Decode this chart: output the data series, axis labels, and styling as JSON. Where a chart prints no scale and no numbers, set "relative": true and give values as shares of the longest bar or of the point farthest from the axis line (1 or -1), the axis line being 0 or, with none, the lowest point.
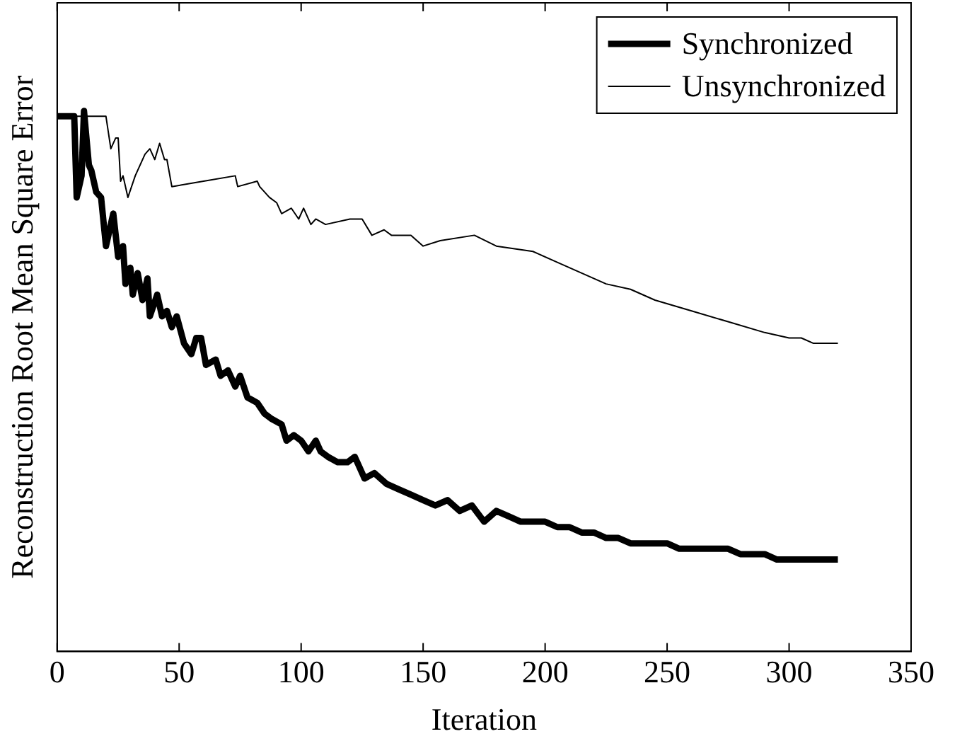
{
  "chart_data": {
    "type": "line",
    "xlabel": "Iteration",
    "ylabel": "Reconstruction Root Mean Square Error",
    "relative": true,
    "xlim": [
      0,
      350
    ],
    "xticks": [
      0,
      50,
      100,
      150,
      200,
      250,
      300,
      350
    ],
    "legend": "top right",
    "marker": "none",
    "series": [
      {
        "name": "Synchronized",
        "color": "#000000",
        "x": [
          0,
          5,
          7,
          8,
          10,
          11,
          13,
          14,
          16,
          18,
          20,
          22,
          23,
          25,
          27,
          28,
          30,
          31,
          33,
          35,
          37,
          38,
          41,
          43,
          45,
          47,
          49,
          52,
          55,
          57,
          59,
          61,
          65,
          67,
          70,
          73,
          75,
          78,
          82,
          85,
          88,
          92,
          94,
          97,
          100,
          103,
          106,
          108,
          111,
          115,
          119,
          122,
          126,
          130,
          135,
          140,
          145,
          150,
          155,
          160,
          165,
          170,
          175,
          180,
          185,
          190,
          195,
          200,
          205,
          210,
          215,
          220,
          225,
          230,
          235,
          240,
          245,
          250,
          255,
          260,
          265,
          270,
          275,
          280,
          285,
          290,
          295,
          300,
          305,
          310,
          315,
          320
        ],
        "values": [
          0.99,
          0.99,
          0.99,
          0.84,
          0.88,
          1.0,
          0.9,
          0.89,
          0.85,
          0.84,
          0.75,
          0.79,
          0.81,
          0.73,
          0.75,
          0.68,
          0.71,
          0.66,
          0.7,
          0.65,
          0.69,
          0.62,
          0.66,
          0.62,
          0.63,
          0.6,
          0.62,
          0.57,
          0.55,
          0.58,
          0.58,
          0.53,
          0.54,
          0.51,
          0.52,
          0.49,
          0.51,
          0.47,
          0.46,
          0.44,
          0.43,
          0.42,
          0.39,
          0.4,
          0.39,
          0.37,
          0.39,
          0.37,
          0.36,
          0.35,
          0.35,
          0.36,
          0.32,
          0.33,
          0.31,
          0.3,
          0.29,
          0.28,
          0.27,
          0.28,
          0.26,
          0.27,
          0.24,
          0.26,
          0.25,
          0.24,
          0.24,
          0.24,
          0.23,
          0.23,
          0.22,
          0.22,
          0.21,
          0.21,
          0.2,
          0.2,
          0.2,
          0.2,
          0.19,
          0.19,
          0.19,
          0.19,
          0.19,
          0.18,
          0.18,
          0.18,
          0.17,
          0.17,
          0.17,
          0.17,
          0.17,
          0.17
        ]
      },
      {
        "name": "Unsynchronized",
        "color": "#000000",
        "x": [
          0,
          20,
          22,
          24,
          25,
          26,
          27,
          29,
          32,
          36,
          38,
          40,
          42,
          44,
          45,
          47,
          60,
          73,
          74,
          82,
          83,
          87,
          90,
          92,
          96,
          99,
          101,
          104,
          106,
          110,
          120,
          125,
          129,
          134,
          137,
          145,
          150,
          157,
          171,
          180,
          195,
          205,
          215,
          225,
          235,
          245,
          260,
          275,
          290,
          300,
          305,
          310,
          320
        ],
        "values": [
          0.99,
          0.99,
          0.93,
          0.95,
          0.95,
          0.87,
          0.88,
          0.84,
          0.88,
          0.92,
          0.93,
          0.91,
          0.94,
          0.91,
          0.91,
          0.86,
          0.87,
          0.88,
          0.86,
          0.87,
          0.86,
          0.84,
          0.83,
          0.81,
          0.82,
          0.8,
          0.82,
          0.79,
          0.8,
          0.79,
          0.8,
          0.8,
          0.77,
          0.78,
          0.77,
          0.77,
          0.75,
          0.76,
          0.77,
          0.75,
          0.74,
          0.72,
          0.7,
          0.68,
          0.67,
          0.65,
          0.63,
          0.61,
          0.59,
          0.58,
          0.58,
          0.57,
          0.57
        ]
      }
    ]
  }
}
